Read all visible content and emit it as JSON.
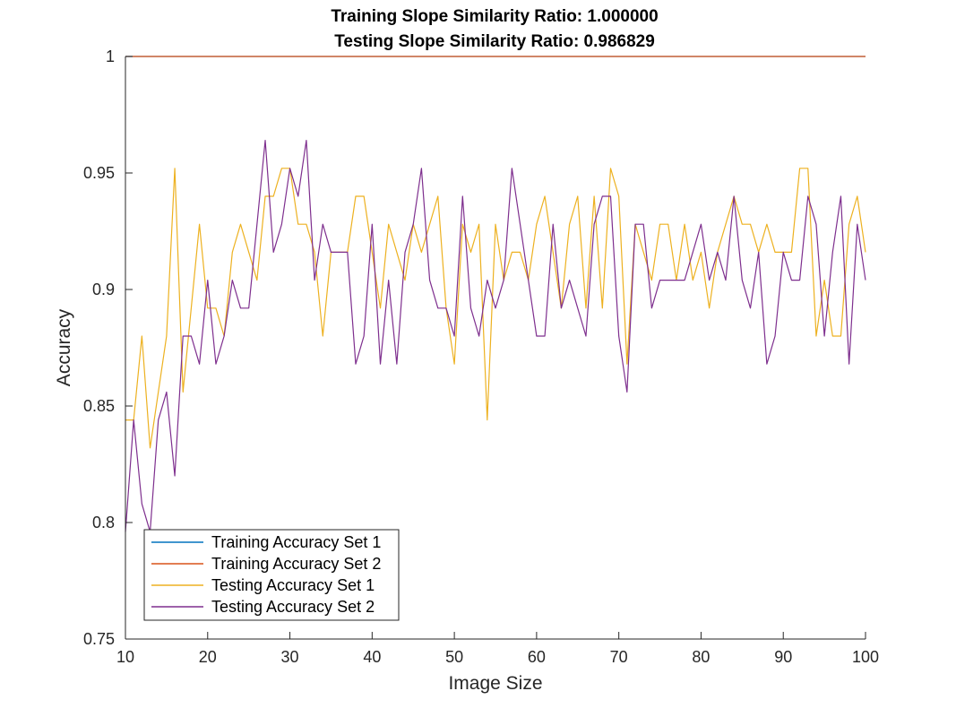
{
  "chart_data": {
    "type": "line",
    "title": [
      "Training Slope Similarity Ratio: 1.000000",
      "Testing Slope Similarity Ratio: 0.986829"
    ],
    "xlabel": "Image Size",
    "ylabel": "Accuracy",
    "xlim": [
      10,
      100
    ],
    "ylim": [
      0.75,
      1
    ],
    "xticks": [
      10,
      20,
      30,
      40,
      50,
      60,
      70,
      80,
      90,
      100
    ],
    "xtick_labels": [
      "10",
      "20",
      "30",
      "40",
      "50",
      "60",
      "70",
      "80",
      "90",
      "100"
    ],
    "yticks": [
      0.75,
      0.8,
      0.85,
      0.9,
      0.95,
      1
    ],
    "ytick_labels": [
      "0.75",
      "0.8",
      "0.85",
      "0.9",
      "0.95",
      "1"
    ],
    "grid": false,
    "legend_position": "bottom-left",
    "x": [
      10,
      11,
      12,
      13,
      14,
      15,
      16,
      17,
      18,
      19,
      20,
      21,
      22,
      23,
      24,
      25,
      26,
      27,
      28,
      29,
      30,
      31,
      32,
      33,
      34,
      35,
      36,
      37,
      38,
      39,
      40,
      41,
      42,
      43,
      44,
      45,
      46,
      47,
      48,
      49,
      50,
      51,
      52,
      53,
      54,
      55,
      56,
      57,
      58,
      59,
      60,
      61,
      62,
      63,
      64,
      65,
      66,
      67,
      68,
      69,
      70,
      71,
      72,
      73,
      74,
      75,
      76,
      77,
      78,
      79,
      80,
      81,
      82,
      83,
      84,
      85,
      86,
      87,
      88,
      89,
      90,
      91,
      92,
      93,
      94,
      95,
      96,
      97,
      98,
      99,
      100
    ],
    "series": [
      {
        "name": "Training Accuracy Set 1",
        "color": "#0072BD",
        "values": [
          1,
          1,
          1,
          1,
          1,
          1,
          1,
          1,
          1,
          1,
          1,
          1,
          1,
          1,
          1,
          1,
          1,
          1,
          1,
          1,
          1,
          1,
          1,
          1,
          1,
          1,
          1,
          1,
          1,
          1,
          1,
          1,
          1,
          1,
          1,
          1,
          1,
          1,
          1,
          1,
          1,
          1,
          1,
          1,
          1,
          1,
          1,
          1,
          1,
          1,
          1,
          1,
          1,
          1,
          1,
          1,
          1,
          1,
          1,
          1,
          1,
          1,
          1,
          1,
          1,
          1,
          1,
          1,
          1,
          1,
          1,
          1,
          1,
          1,
          1,
          1,
          1,
          1,
          1,
          1,
          1,
          1,
          1,
          1,
          1,
          1,
          1,
          1,
          1,
          1,
          1
        ]
      },
      {
        "name": "Training Accuracy Set 2",
        "color": "#D95319",
        "values": [
          1,
          1,
          1,
          1,
          1,
          1,
          1,
          1,
          1,
          1,
          1,
          1,
          1,
          1,
          1,
          1,
          1,
          1,
          1,
          1,
          1,
          1,
          1,
          1,
          1,
          1,
          1,
          1,
          1,
          1,
          1,
          1,
          1,
          1,
          1,
          1,
          1,
          1,
          1,
          1,
          1,
          1,
          1,
          1,
          1,
          1,
          1,
          1,
          1,
          1,
          1,
          1,
          1,
          1,
          1,
          1,
          1,
          1,
          1,
          1,
          1,
          1,
          1,
          1,
          1,
          1,
          1,
          1,
          1,
          1,
          1,
          1,
          1,
          1,
          1,
          1,
          1,
          1,
          1,
          1,
          1,
          1,
          1,
          1,
          1,
          1,
          1,
          1,
          1,
          1,
          1
        ]
      },
      {
        "name": "Testing Accuracy Set 1",
        "color": "#EDB120",
        "values": [
          0.844,
          0.844,
          0.88,
          0.832,
          0.856,
          0.88,
          0.952,
          0.856,
          0.892,
          0.928,
          0.892,
          0.892,
          0.88,
          0.916,
          0.928,
          0.916,
          0.904,
          0.94,
          0.94,
          0.952,
          0.952,
          0.928,
          0.928,
          0.916,
          0.88,
          0.916,
          0.916,
          0.916,
          0.94,
          0.94,
          0.916,
          0.892,
          0.928,
          0.916,
          0.904,
          0.928,
          0.916,
          0.928,
          0.94,
          0.892,
          0.868,
          0.928,
          0.916,
          0.928,
          0.844,
          0.928,
          0.904,
          0.916,
          0.916,
          0.904,
          0.928,
          0.94,
          0.916,
          0.892,
          0.928,
          0.94,
          0.892,
          0.94,
          0.892,
          0.952,
          0.94,
          0.868,
          0.928,
          0.916,
          0.904,
          0.928,
          0.928,
          0.904,
          0.928,
          0.904,
          0.916,
          0.892,
          0.916,
          0.928,
          0.94,
          0.928,
          0.928,
          0.916,
          0.928,
          0.916,
          0.916,
          0.916,
          0.952,
          0.952,
          0.88,
          0.904,
          0.88,
          0.88,
          0.928,
          0.94,
          0.916
        ]
      },
      {
        "name": "Testing Accuracy Set 2",
        "color": "#7E2F8E",
        "values": [
          0.796,
          0.844,
          0.808,
          0.796,
          0.844,
          0.856,
          0.82,
          0.88,
          0.88,
          0.868,
          0.904,
          0.868,
          0.88,
          0.904,
          0.892,
          0.892,
          0.928,
          0.964,
          0.916,
          0.928,
          0.952,
          0.94,
          0.964,
          0.904,
          0.928,
          0.916,
          0.916,
          0.916,
          0.868,
          0.88,
          0.928,
          0.868,
          0.904,
          0.868,
          0.916,
          0.928,
          0.952,
          0.904,
          0.892,
          0.892,
          0.88,
          0.94,
          0.892,
          0.88,
          0.904,
          0.892,
          0.904,
          0.952,
          0.928,
          0.904,
          0.88,
          0.88,
          0.928,
          0.892,
          0.904,
          0.892,
          0.88,
          0.928,
          0.94,
          0.94,
          0.88,
          0.856,
          0.928,
          0.928,
          0.892,
          0.904,
          0.904,
          0.904,
          0.904,
          0.916,
          0.928,
          0.904,
          0.916,
          0.904,
          0.94,
          0.904,
          0.892,
          0.916,
          0.868,
          0.88,
          0.916,
          0.904,
          0.904,
          0.94,
          0.928,
          0.88,
          0.916,
          0.94,
          0.868,
          0.928,
          0.904
        ]
      }
    ]
  }
}
